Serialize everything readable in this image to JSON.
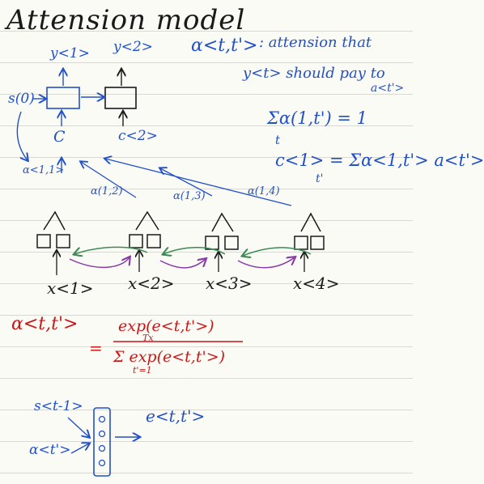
{
  "title": "Attension model",
  "decoder": {
    "y1": "y<1>",
    "y2": "y<2>",
    "s0": "s(0)",
    "c1": "C",
    "c2": "c<2>"
  },
  "definition": {
    "symbol": "α<t,t'>",
    "text1": ": attension that",
    "text2": "y<t> should pay to",
    "target": "a<t'>"
  },
  "equations": {
    "sum1": "Σα(1,t') = 1",
    "sum1_sub": "t",
    "context": "c<1> = Σα<1,t'> a<t'>",
    "context_sub": "t'"
  },
  "attention_labels": {
    "a11": "α<1,1>",
    "a12": "α(1,2)",
    "a13": "α(1,3)",
    "a14": "α(1,4)"
  },
  "encoder": {
    "inputs": [
      "x<1>",
      "x<2>",
      "x<3>",
      "x<4>"
    ]
  },
  "softmax": {
    "lhs": "α<t,t'>",
    "eq": "=",
    "numerator": "exp(e<t,t'>)",
    "denominator": "Σ exp(e<t,t'>)",
    "denominator_limits_top": "Tx",
    "denominator_limits_bottom": "t'=1"
  },
  "small_net": {
    "s_input": "s<t-1>",
    "a_input": "α<t'>",
    "output": "e<t,t'>"
  }
}
